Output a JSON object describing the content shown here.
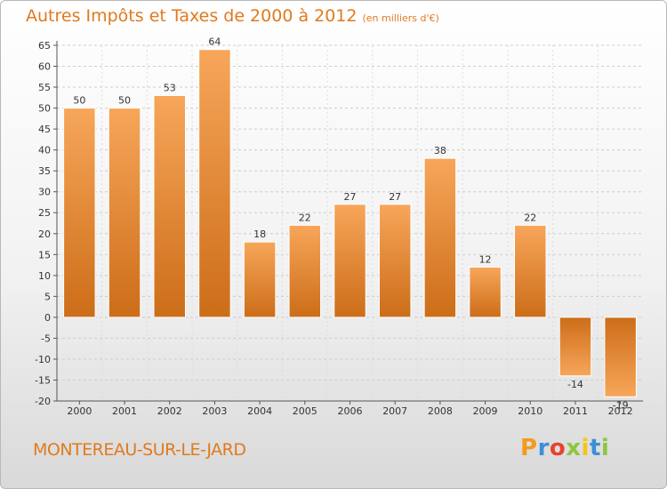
{
  "title": "Autres Impôts et Taxes de 2000 à 2012",
  "subtitle": "(en milliers d'€)",
  "location": "MONTEREAU-SUR-LE-JARD",
  "brand": {
    "letters": [
      "P",
      "r",
      "o",
      "x",
      "i",
      "t",
      "i"
    ],
    "colors": [
      "#f29b1d",
      "#3b8fd6",
      "#e8432d",
      "#8cc63f",
      "#f2c80f",
      "#3b8fd6",
      "#8cc63f"
    ]
  },
  "colors": {
    "title": "#e07a1e",
    "bar_light": "#f7a65a",
    "bar_dark": "#cc6d18",
    "grid": "#cccccc"
  },
  "chart_data": {
    "type": "bar",
    "categories": [
      "2000",
      "2001",
      "2002",
      "2003",
      "2004",
      "2005",
      "2006",
      "2007",
      "2008",
      "2009",
      "2010",
      "2011",
      "2012"
    ],
    "values": [
      50,
      50,
      53,
      64,
      18,
      22,
      27,
      27,
      38,
      12,
      22,
      -14,
      -19
    ],
    "data_labels": [
      "50",
      "50",
      "53",
      "64",
      "18",
      "22",
      "27",
      "27",
      "38",
      "12",
      "22",
      "-14",
      "-19"
    ],
    "yticks": [
      "65",
      "60",
      "55",
      "50",
      "45",
      "40",
      "35",
      "30",
      "25",
      "20",
      "15",
      "10",
      "5",
      "0",
      "-5",
      "-10",
      "-15",
      "-20"
    ],
    "ylim": [
      -20,
      65
    ],
    "grid": true
  }
}
